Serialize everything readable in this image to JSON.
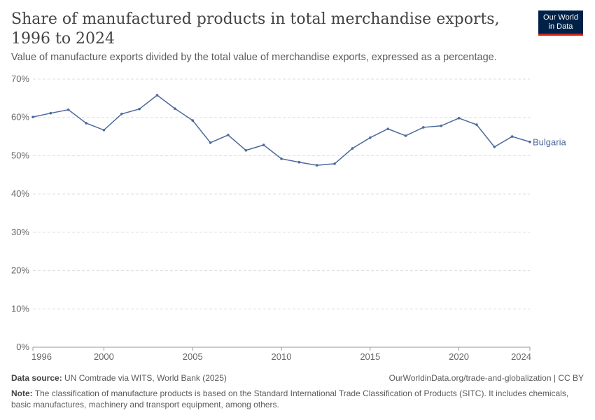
{
  "header": {
    "title": "Share of manufactured products in total merchandise exports, 1996 to 2024",
    "subtitle": "Value of manufacture exports divided by the total value of merchandise exports, expressed as a percentage.",
    "logo": "Our World in Data"
  },
  "footer": {
    "source_label": "Data source:",
    "source": "UN Comtrade via WITS, World Bank (2025)",
    "url": "OurWorldinData.org/trade-and-globalization | CC BY",
    "note_label": "Note:",
    "note": "The classification of manufacture products is based on the Standard International Trade Classification of Products (SITC). It includes chemicals, basic manufactures, machinery and transport equipment, among others."
  },
  "colors": {
    "series": "#4c6a9c",
    "grid": "#dddddd"
  },
  "chart_data": {
    "type": "line",
    "title": "Share of manufactured products in total merchandise exports, 1996 to 2024",
    "ylim": [
      0,
      70
    ],
    "xlim": [
      1996,
      2024
    ],
    "yticks": [
      0,
      10,
      20,
      30,
      40,
      50,
      60,
      70
    ],
    "ytick_labels": [
      "0%",
      "10%",
      "20%",
      "30%",
      "40%",
      "50%",
      "60%",
      "70%"
    ],
    "xticks": [
      1996,
      2000,
      2005,
      2010,
      2015,
      2020,
      2024
    ],
    "xtick_labels": [
      "1996",
      "2000",
      "2005",
      "2010",
      "2015",
      "2020",
      "2024"
    ],
    "grid": "horizontal dashed",
    "x": [
      1996,
      1997,
      1998,
      1999,
      2000,
      2001,
      2002,
      2003,
      2004,
      2005,
      2006,
      2007,
      2008,
      2009,
      2010,
      2011,
      2012,
      2013,
      2014,
      2015,
      2016,
      2017,
      2018,
      2019,
      2020,
      2021,
      2022,
      2023,
      2024
    ],
    "series": [
      {
        "name": "Bulgaria",
        "values": [
          60.1,
          61.1,
          62.0,
          58.5,
          56.7,
          60.9,
          62.2,
          65.8,
          62.3,
          59.2,
          53.4,
          55.4,
          51.4,
          52.8,
          49.2,
          48.3,
          47.5,
          47.9,
          51.9,
          54.7,
          57.0,
          55.2,
          57.4,
          57.8,
          59.8,
          58.1,
          52.3,
          55.0,
          53.6
        ]
      }
    ]
  }
}
